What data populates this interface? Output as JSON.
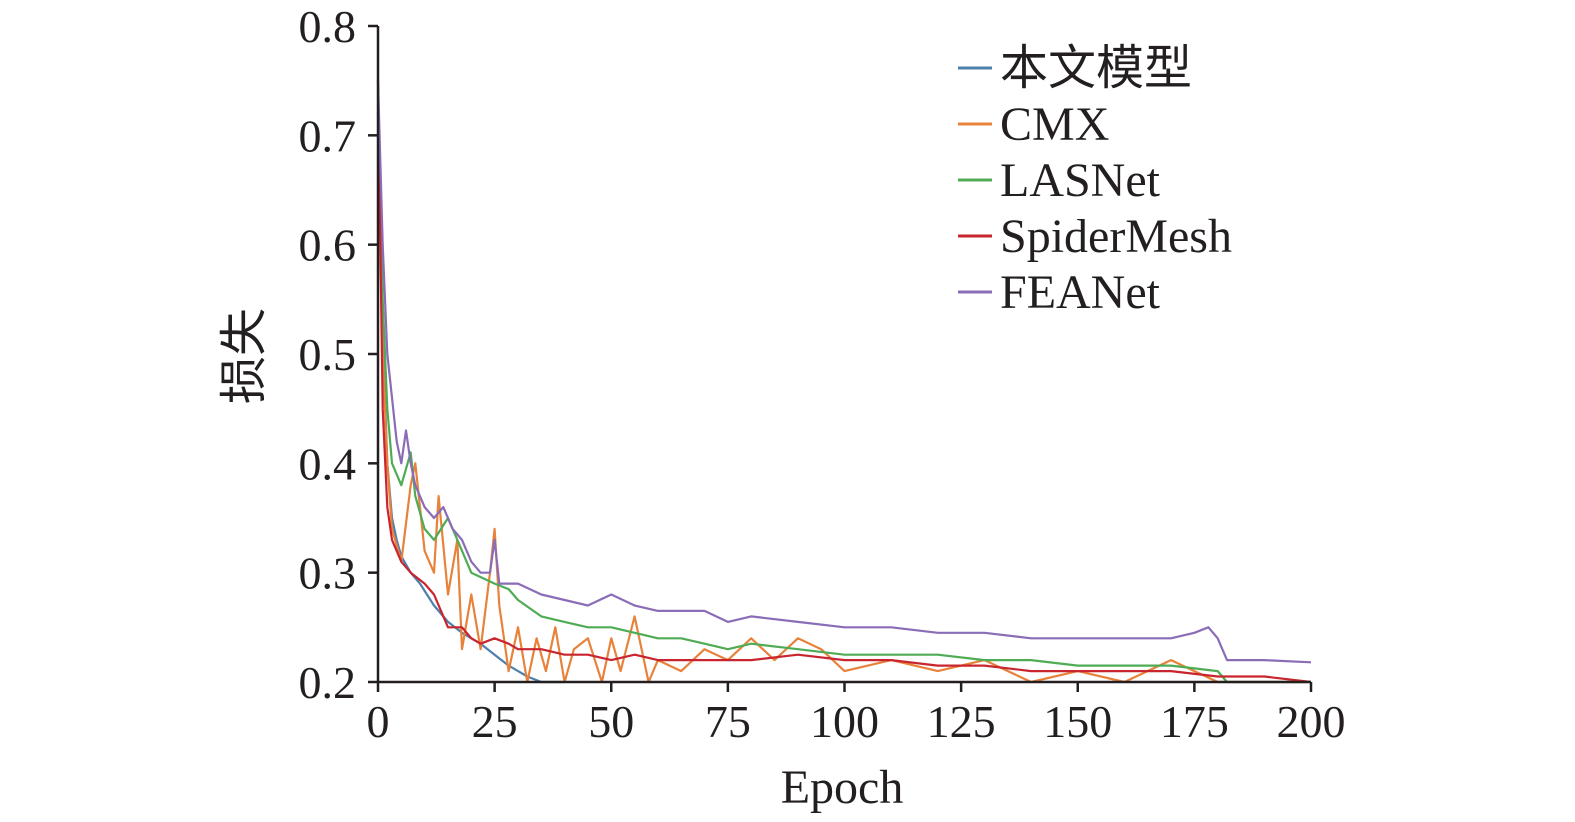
{
  "chart_data": {
    "type": "line",
    "title": "",
    "xlabel": "Epoch",
    "ylabel": "损失",
    "xlim": [
      0,
      200
    ],
    "ylim": [
      0.2,
      0.8
    ],
    "xticks": [
      "0",
      "25",
      "50",
      "75",
      "100",
      "125",
      "150",
      "175",
      "200"
    ],
    "yticks": [
      "0.2",
      "0.3",
      "0.4",
      "0.5",
      "0.6",
      "0.7",
      "0.8"
    ],
    "legend_position": "top-right",
    "grid": false,
    "series": [
      {
        "name": "本文模型",
        "color": "#4e80ae",
        "x": [
          0,
          1,
          2,
          3,
          4,
          5,
          7,
          9,
          12,
          15,
          18,
          20,
          22,
          25,
          28,
          30,
          32,
          35,
          40
        ],
        "y": [
          0.72,
          0.52,
          0.4,
          0.35,
          0.33,
          0.315,
          0.3,
          0.29,
          0.27,
          0.255,
          0.245,
          0.24,
          0.235,
          0.225,
          0.215,
          0.21,
          0.205,
          0.2,
          0.2
        ]
      },
      {
        "name": "CMX",
        "color": "#e8823b",
        "x": [
          0,
          1,
          2,
          3,
          5,
          7,
          8,
          10,
          12,
          13,
          15,
          17,
          18,
          20,
          22,
          24,
          25,
          26,
          28,
          30,
          32,
          34,
          36,
          38,
          40,
          42,
          45,
          48,
          50,
          52,
          55,
          58,
          60,
          65,
          70,
          75,
          80,
          85,
          90,
          95,
          100,
          110,
          120,
          130,
          140,
          150,
          160,
          170,
          175,
          180,
          190,
          200
        ],
        "y": [
          0.7,
          0.5,
          0.4,
          0.34,
          0.31,
          0.38,
          0.4,
          0.32,
          0.3,
          0.37,
          0.28,
          0.33,
          0.23,
          0.28,
          0.23,
          0.3,
          0.34,
          0.27,
          0.21,
          0.25,
          0.2,
          0.24,
          0.21,
          0.25,
          0.2,
          0.23,
          0.24,
          0.2,
          0.24,
          0.21,
          0.26,
          0.2,
          0.22,
          0.21,
          0.23,
          0.22,
          0.24,
          0.22,
          0.24,
          0.23,
          0.21,
          0.22,
          0.21,
          0.22,
          0.2,
          0.21,
          0.2,
          0.22,
          0.21,
          0.2,
          0.2,
          0.2
        ]
      },
      {
        "name": "LASNet",
        "color": "#4fac54",
        "x": [
          0,
          1,
          2,
          3,
          5,
          7,
          8,
          10,
          12,
          15,
          18,
          20,
          25,
          28,
          30,
          35,
          40,
          45,
          50,
          55,
          60,
          65,
          70,
          75,
          80,
          90,
          100,
          110,
          120,
          130,
          140,
          150,
          160,
          170,
          180,
          182,
          190,
          200
        ],
        "y": [
          0.72,
          0.55,
          0.45,
          0.4,
          0.38,
          0.41,
          0.37,
          0.34,
          0.33,
          0.35,
          0.32,
          0.3,
          0.29,
          0.285,
          0.275,
          0.26,
          0.255,
          0.25,
          0.25,
          0.245,
          0.24,
          0.24,
          0.235,
          0.23,
          0.235,
          0.23,
          0.225,
          0.225,
          0.225,
          0.22,
          0.22,
          0.215,
          0.215,
          0.215,
          0.21,
          0.2,
          0.2,
          0.2
        ]
      },
      {
        "name": "SpiderMesh",
        "color": "#c9252e",
        "x": [
          0,
          1,
          2,
          3,
          5,
          7,
          10,
          12,
          15,
          18,
          20,
          22,
          25,
          28,
          30,
          35,
          40,
          45,
          50,
          55,
          60,
          65,
          70,
          75,
          80,
          90,
          100,
          110,
          120,
          130,
          140,
          150,
          160,
          170,
          180,
          190,
          200
        ],
        "y": [
          0.75,
          0.45,
          0.36,
          0.33,
          0.31,
          0.3,
          0.29,
          0.28,
          0.25,
          0.25,
          0.24,
          0.235,
          0.24,
          0.235,
          0.23,
          0.23,
          0.225,
          0.225,
          0.22,
          0.225,
          0.22,
          0.22,
          0.22,
          0.22,
          0.22,
          0.225,
          0.22,
          0.22,
          0.215,
          0.215,
          0.21,
          0.21,
          0.21,
          0.21,
          0.205,
          0.205,
          0.2
        ]
      },
      {
        "name": "FEANet",
        "color": "#8a6cb7",
        "x": [
          0,
          1,
          2,
          3,
          4,
          5,
          6,
          7,
          8,
          10,
          12,
          14,
          16,
          18,
          20,
          22,
          24,
          25,
          26,
          28,
          30,
          35,
          40,
          45,
          50,
          55,
          60,
          65,
          70,
          75,
          80,
          90,
          100,
          110,
          120,
          130,
          140,
          150,
          160,
          170,
          175,
          178,
          180,
          182,
          185,
          190,
          200
        ],
        "y": [
          0.75,
          0.6,
          0.5,
          0.46,
          0.42,
          0.4,
          0.43,
          0.4,
          0.38,
          0.36,
          0.35,
          0.36,
          0.34,
          0.33,
          0.31,
          0.3,
          0.3,
          0.33,
          0.29,
          0.29,
          0.29,
          0.28,
          0.275,
          0.27,
          0.28,
          0.27,
          0.265,
          0.265,
          0.265,
          0.255,
          0.26,
          0.255,
          0.25,
          0.25,
          0.245,
          0.245,
          0.24,
          0.24,
          0.24,
          0.24,
          0.245,
          0.25,
          0.24,
          0.22,
          0.22,
          0.22,
          0.218
        ]
      }
    ]
  }
}
